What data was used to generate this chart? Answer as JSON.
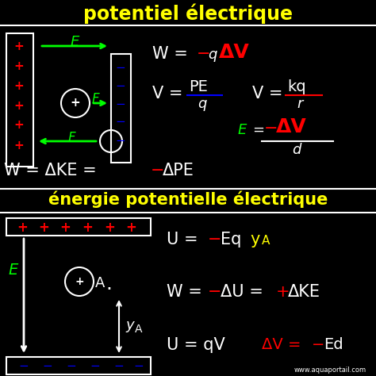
{
  "bg_color": "#000000",
  "title1": "potentiel électrique",
  "title1_color": "#ffff00",
  "title2": "énergie potentielle électrique",
  "title2_color": "#ffff00",
  "watermark": "www.aquaportail.com",
  "watermark_color": "#ffffff",
  "white": "#ffffff",
  "red": "#ff0000",
  "green": "#00ff00",
  "blue": "#0000ff",
  "yellow": "#ffff00"
}
